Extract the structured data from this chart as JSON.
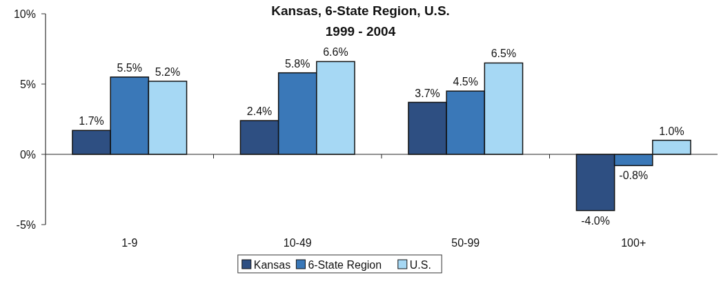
{
  "chart_data": {
    "type": "bar",
    "title": "Kansas, 6-State Region, U.S.",
    "subtitle": "1999 - 2004",
    "categories": [
      "1-9",
      "10-49",
      "50-99",
      "100+"
    ],
    "series": [
      {
        "name": "Kansas",
        "color": "#2e4f82",
        "values": [
          1.7,
          2.4,
          3.7,
          -4.0
        ],
        "value_labels": [
          "1.7%",
          "2.4%",
          "3.7%",
          "-4.0%"
        ]
      },
      {
        "name": "6-State Region",
        "color": "#3a78b8",
        "values": [
          5.5,
          5.8,
          4.5,
          -0.8
        ],
        "value_labels": [
          "5.5%",
          "5.8%",
          "4.5%",
          "-0.8%"
        ]
      },
      {
        "name": "U.S.",
        "color": "#a6d8f4",
        "values": [
          5.2,
          6.6,
          6.5,
          1.0
        ],
        "value_labels": [
          "5.2%",
          "6.6%",
          "6.5%",
          "1.0%"
        ]
      }
    ],
    "ylim": [
      -5,
      10
    ],
    "yticks": [
      {
        "value": -5,
        "label": "-5%"
      },
      {
        "value": 0,
        "label": "0%"
      },
      {
        "value": 5,
        "label": "5%"
      },
      {
        "value": 10,
        "label": "10%"
      }
    ],
    "legend": "bottom"
  }
}
